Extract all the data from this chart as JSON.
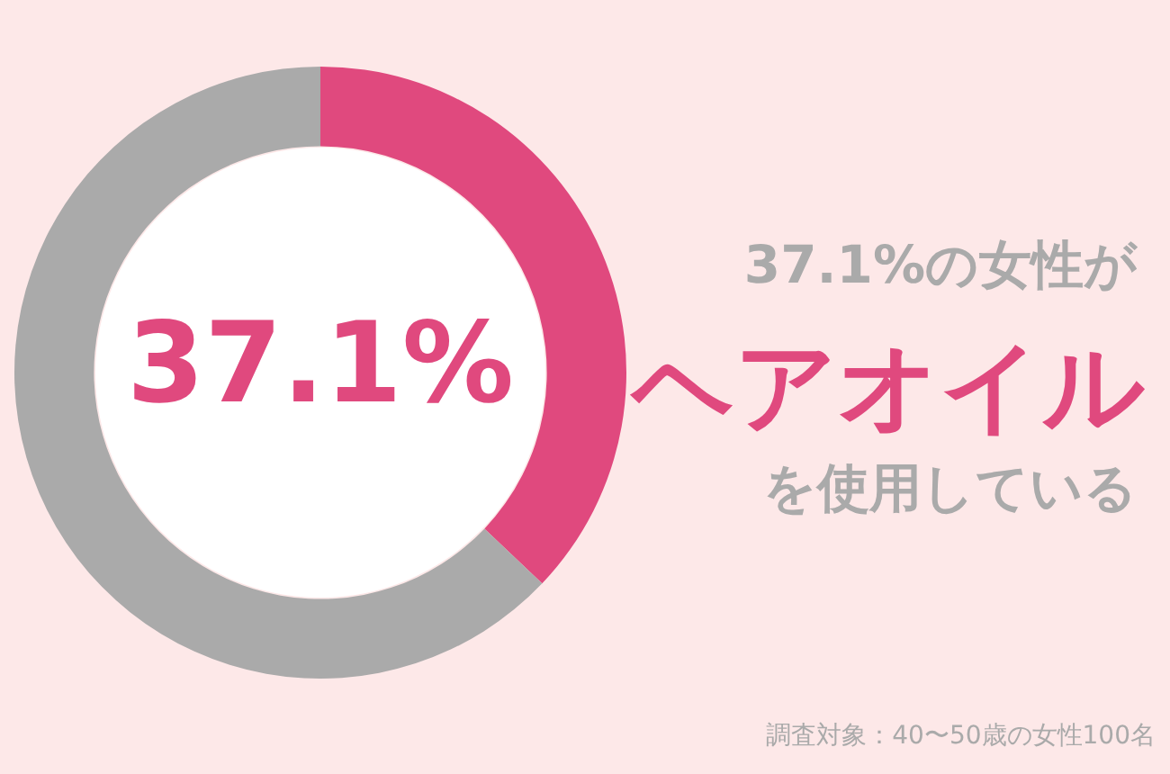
{
  "chart_data": {
    "type": "donut",
    "categories": [
      null,
      null
    ],
    "values": [
      37.1,
      62.9
    ],
    "colors": [
      "#e0497e",
      "#aaaaaa"
    ],
    "value_labels": [
      "37.1%",
      null
    ],
    "legend": false,
    "annotations": [
      "37.1%の女性が",
      "ヘアオイル",
      "を使用している",
      "調査対象：40〜50歳の女性100名"
    ]
  }
}
